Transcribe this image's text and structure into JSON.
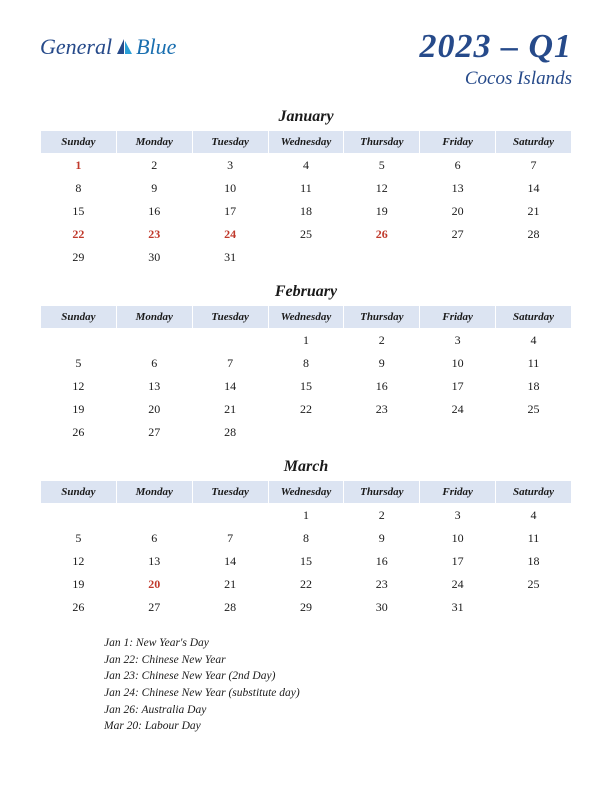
{
  "logo": {
    "general": "General",
    "blue": "Blue"
  },
  "title": {
    "main": "2023 – Q1",
    "sub": "Cocos Islands"
  },
  "daysOfWeek": [
    "Sunday",
    "Monday",
    "Tuesday",
    "Wednesday",
    "Thursday",
    "Friday",
    "Saturday"
  ],
  "months": [
    {
      "name": "January",
      "weeks": [
        [
          {
            "d": "1",
            "h": true
          },
          {
            "d": "2"
          },
          {
            "d": "3"
          },
          {
            "d": "4"
          },
          {
            "d": "5"
          },
          {
            "d": "6"
          },
          {
            "d": "7"
          }
        ],
        [
          {
            "d": "8"
          },
          {
            "d": "9"
          },
          {
            "d": "10"
          },
          {
            "d": "11"
          },
          {
            "d": "12"
          },
          {
            "d": "13"
          },
          {
            "d": "14"
          }
        ],
        [
          {
            "d": "15"
          },
          {
            "d": "16"
          },
          {
            "d": "17"
          },
          {
            "d": "18"
          },
          {
            "d": "19"
          },
          {
            "d": "20"
          },
          {
            "d": "21"
          }
        ],
        [
          {
            "d": "22",
            "h": true
          },
          {
            "d": "23",
            "h": true
          },
          {
            "d": "24",
            "h": true
          },
          {
            "d": "25"
          },
          {
            "d": "26",
            "h": true
          },
          {
            "d": "27"
          },
          {
            "d": "28"
          }
        ],
        [
          {
            "d": "29"
          },
          {
            "d": "30"
          },
          {
            "d": "31"
          },
          {
            "d": ""
          },
          {
            "d": ""
          },
          {
            "d": ""
          },
          {
            "d": ""
          }
        ]
      ]
    },
    {
      "name": "February",
      "weeks": [
        [
          {
            "d": ""
          },
          {
            "d": ""
          },
          {
            "d": ""
          },
          {
            "d": "1"
          },
          {
            "d": "2"
          },
          {
            "d": "3"
          },
          {
            "d": "4"
          }
        ],
        [
          {
            "d": "5"
          },
          {
            "d": "6"
          },
          {
            "d": "7"
          },
          {
            "d": "8"
          },
          {
            "d": "9"
          },
          {
            "d": "10"
          },
          {
            "d": "11"
          }
        ],
        [
          {
            "d": "12"
          },
          {
            "d": "13"
          },
          {
            "d": "14"
          },
          {
            "d": "15"
          },
          {
            "d": "16"
          },
          {
            "d": "17"
          },
          {
            "d": "18"
          }
        ],
        [
          {
            "d": "19"
          },
          {
            "d": "20"
          },
          {
            "d": "21"
          },
          {
            "d": "22"
          },
          {
            "d": "23"
          },
          {
            "d": "24"
          },
          {
            "d": "25"
          }
        ],
        [
          {
            "d": "26"
          },
          {
            "d": "27"
          },
          {
            "d": "28"
          },
          {
            "d": ""
          },
          {
            "d": ""
          },
          {
            "d": ""
          },
          {
            "d": ""
          }
        ]
      ]
    },
    {
      "name": "March",
      "weeks": [
        [
          {
            "d": ""
          },
          {
            "d": ""
          },
          {
            "d": ""
          },
          {
            "d": "1"
          },
          {
            "d": "2"
          },
          {
            "d": "3"
          },
          {
            "d": "4"
          }
        ],
        [
          {
            "d": "5"
          },
          {
            "d": "6"
          },
          {
            "d": "7"
          },
          {
            "d": "8"
          },
          {
            "d": "9"
          },
          {
            "d": "10"
          },
          {
            "d": "11"
          }
        ],
        [
          {
            "d": "12"
          },
          {
            "d": "13"
          },
          {
            "d": "14"
          },
          {
            "d": "15"
          },
          {
            "d": "16"
          },
          {
            "d": "17"
          },
          {
            "d": "18"
          }
        ],
        [
          {
            "d": "19"
          },
          {
            "d": "20",
            "h": true
          },
          {
            "d": "21"
          },
          {
            "d": "22"
          },
          {
            "d": "23"
          },
          {
            "d": "24"
          },
          {
            "d": "25"
          }
        ],
        [
          {
            "d": "26"
          },
          {
            "d": "27"
          },
          {
            "d": "28"
          },
          {
            "d": "29"
          },
          {
            "d": "30"
          },
          {
            "d": "31"
          },
          {
            "d": ""
          }
        ]
      ]
    }
  ],
  "holidays": [
    "Jan 1: New Year's Day",
    "Jan 22: Chinese New Year",
    "Jan 23: Chinese New Year (2nd Day)",
    "Jan 24: Chinese New Year (substitute day)",
    "Jan 26: Australia Day",
    "Mar 20: Labour Day"
  ],
  "colors": {
    "header_bg": "#dce4f2",
    "brand_dark": "#264a8a",
    "brand_light": "#1a6fb0",
    "holiday": "#c0392b",
    "text": "#1a1a1a",
    "page_bg": "#ffffff"
  }
}
